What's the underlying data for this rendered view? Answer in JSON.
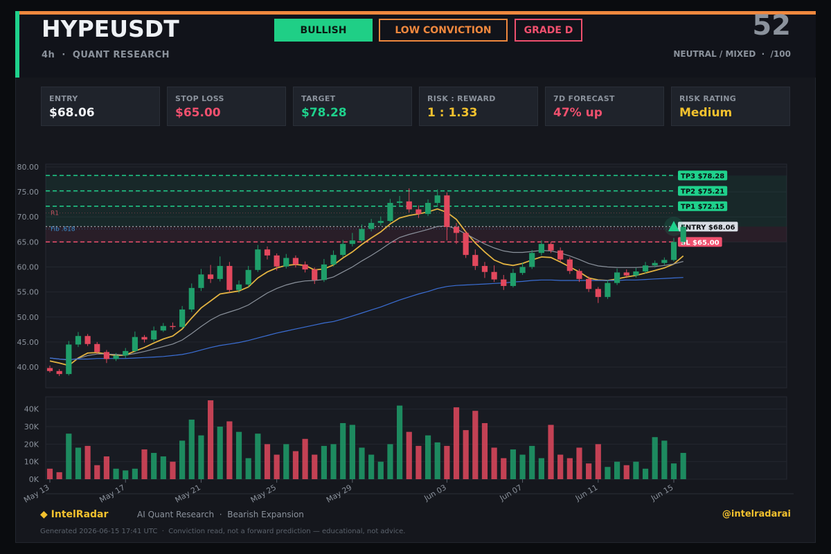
{
  "header": {
    "symbol": "HYPEUSDT",
    "subtitle": "4h  ·  QUANT RESEARCH",
    "badges": [
      "BULLISH",
      "LOW CONVICTION",
      "GRADE D"
    ],
    "score": 52,
    "score_label": "NEUTRAL / MIXED  ·  /100"
  },
  "cards": [
    {
      "label": "ENTRY",
      "value": "$68.06"
    },
    {
      "label": "STOP LOSS",
      "value": "$65.00"
    },
    {
      "label": "TARGET",
      "value": "$78.28"
    },
    {
      "label": "RISK : REWARD",
      "value": "1 : 1.33"
    },
    {
      "label": "7D FORECAST",
      "value": "47% up"
    },
    {
      "label": "RISK RATING",
      "value": "Medium"
    }
  ],
  "chart_data": {
    "type": "candlestick",
    "categories": [
      "May 13",
      null,
      null,
      null,
      null,
      null,
      null,
      null,
      "May 17",
      null,
      null,
      null,
      null,
      null,
      null,
      null,
      "May 21",
      null,
      null,
      null,
      null,
      null,
      null,
      null,
      "May 25",
      null,
      null,
      null,
      null,
      null,
      null,
      null,
      "May 29",
      null,
      null,
      null,
      null,
      null,
      null,
      null,
      null,
      null,
      "Jun 03",
      null,
      null,
      null,
      null,
      null,
      null,
      null,
      "Jun 07",
      null,
      null,
      null,
      null,
      null,
      null,
      null,
      "Jun 11",
      null,
      null,
      null,
      null,
      null,
      null,
      null,
      "Jun 15",
      null
    ],
    "open": [
      39.8,
      39.2,
      38.6,
      44.5,
      46.2,
      44.6,
      43.0,
      41.6,
      42.3,
      43.2,
      46.0,
      45.5,
      47.3,
      48.2,
      48.0,
      51.5,
      55.8,
      58.5,
      57.6,
      60.2,
      55.4,
      56.5,
      59.4,
      63.5,
      62.3,
      60.1,
      61.8,
      60.5,
      59.5,
      57.4,
      60.5,
      62.4,
      64.6,
      65.3,
      67.6,
      68.8,
      69.2,
      72.8,
      73.1,
      71.5,
      70.6,
      72.8,
      74.3,
      68.0,
      66.8,
      62.4,
      60.2,
      59.0,
      57.5,
      56.2,
      58.8,
      60.0,
      62.8,
      64.6,
      63.3,
      61.5,
      59.2,
      57.6,
      55.6,
      54.0,
      56.8,
      58.9,
      58.3,
      59.1,
      60.3,
      60.8,
      61.4,
      65.0
    ],
    "high": [
      40.3,
      39.6,
      45.2,
      47.0,
      46.6,
      45.0,
      43.4,
      42.8,
      43.8,
      47.1,
      46.4,
      48.1,
      48.8,
      48.9,
      52.2,
      56.7,
      59.6,
      60.4,
      62.1,
      61.0,
      57.3,
      60.2,
      64.4,
      64.1,
      62.7,
      62.6,
      62.3,
      61.1,
      59.9,
      61.6,
      63.3,
      65.4,
      66.8,
      68.5,
      69.6,
      70.1,
      73.6,
      74.2,
      75.7,
      72.3,
      73.5,
      75.5,
      74.9,
      68.8,
      67.2,
      63.5,
      61.0,
      60.3,
      58.4,
      59.6,
      60.9,
      63.4,
      65.3,
      65.0,
      63.9,
      61.9,
      59.6,
      58.1,
      56.0,
      57.4,
      59.7,
      59.5,
      59.8,
      61.0,
      61.3,
      61.9,
      65.8,
      68.4
    ],
    "low": [
      38.9,
      38.2,
      38.3,
      44.0,
      44.2,
      42.6,
      40.8,
      41.2,
      41.8,
      42.9,
      44.9,
      45.1,
      47.0,
      47.5,
      47.7,
      51.0,
      55.2,
      56.8,
      57.1,
      54.9,
      54.8,
      56.0,
      59.0,
      61.5,
      59.3,
      59.7,
      59.9,
      58.9,
      56.6,
      57.0,
      60.1,
      62.0,
      64.1,
      65.0,
      67.1,
      68.3,
      68.9,
      72.1,
      70.9,
      69.8,
      70.2,
      72.3,
      65.3,
      64.6,
      61.8,
      59.4,
      57.8,
      57.0,
      55.4,
      55.9,
      58.4,
      59.6,
      62.3,
      62.8,
      61.0,
      58.6,
      57.0,
      55.0,
      52.8,
      53.6,
      56.4,
      57.8,
      57.9,
      58.7,
      59.9,
      60.4,
      61.1,
      64.4
    ],
    "close": [
      39.2,
      38.6,
      44.5,
      46.2,
      44.6,
      43.0,
      41.6,
      42.3,
      43.2,
      46.0,
      45.5,
      47.3,
      48.2,
      48.0,
      51.5,
      55.8,
      58.5,
      57.6,
      60.2,
      55.4,
      56.5,
      59.4,
      63.5,
      62.3,
      60.1,
      61.8,
      60.5,
      59.5,
      57.4,
      60.5,
      62.4,
      64.6,
      65.3,
      67.6,
      68.8,
      69.2,
      72.8,
      73.1,
      71.5,
      70.6,
      72.8,
      74.3,
      68.0,
      66.8,
      62.4,
      60.2,
      59.0,
      57.5,
      56.2,
      58.8,
      60.0,
      62.8,
      64.6,
      63.3,
      61.5,
      59.2,
      57.6,
      55.6,
      54.0,
      56.8,
      58.9,
      58.3,
      59.1,
      60.3,
      60.8,
      61.4,
      65.0,
      68.0
    ],
    "up_color": "#1f9e6a",
    "down_color": "#e2485d",
    "series": [
      {
        "color": "#e3b341",
        "values": [
          41.2,
          40.8,
          40.3,
          41.8,
          42.8,
          42.9,
          42.6,
          42.3,
          42.4,
          43.2,
          43.9,
          44.8,
          45.6,
          46.2,
          47.6,
          49.8,
          51.8,
          53.2,
          54.6,
          54.9,
          55.2,
          56.0,
          57.8,
          59.0,
          59.8,
          60.3,
          60.5,
          60.3,
          59.4,
          59.6,
          60.4,
          61.8,
          63.0,
          64.5,
          65.8,
          67.0,
          68.6,
          69.8,
          70.3,
          70.6,
          71.0,
          71.6,
          70.9,
          69.5,
          67.0,
          64.8,
          63.0,
          61.4,
          60.6,
          60.3,
          60.7,
          61.4,
          62.0,
          61.9,
          61.0,
          60.0,
          59.0,
          57.8,
          57.4,
          57.3,
          57.6,
          58.0,
          58.3,
          58.8,
          59.3,
          59.8,
          60.6,
          62.2
        ]
      },
      {
        "color": "#8b929c",
        "values": [
          41.8,
          41.6,
          41.4,
          41.7,
          42.3,
          42.6,
          42.6,
          42.5,
          42.4,
          42.7,
          43.1,
          43.6,
          44.1,
          44.6,
          45.4,
          46.7,
          48.1,
          49.4,
          50.4,
          51.0,
          51.6,
          52.4,
          53.6,
          54.8,
          55.7,
          56.4,
          56.9,
          57.2,
          57.3,
          57.5,
          58.0,
          59.0,
          60.0,
          61.2,
          62.3,
          63.5,
          64.8,
          65.9,
          66.5,
          67.0,
          67.5,
          68.1,
          68.2,
          67.6,
          66.6,
          65.6,
          64.6,
          63.8,
          63.2,
          62.9,
          62.9,
          63.1,
          63.3,
          63.2,
          62.8,
          62.2,
          61.5,
          60.7,
          60.2,
          60.0,
          59.9,
          59.9,
          59.9,
          60.0,
          60.1,
          60.3,
          60.6,
          61.1
        ]
      },
      {
        "color": "#3b6fd6",
        "values": [
          41.8,
          41.6,
          41.5,
          41.6,
          41.6,
          41.7,
          41.7,
          41.7,
          41.7,
          41.8,
          41.9,
          42.0,
          42.1,
          42.3,
          42.5,
          42.9,
          43.4,
          43.9,
          44.3,
          44.6,
          44.9,
          45.3,
          45.8,
          46.3,
          46.8,
          47.2,
          47.6,
          48.0,
          48.4,
          48.8,
          49.1,
          49.6,
          50.2,
          50.8,
          51.4,
          52.0,
          52.7,
          53.4,
          54.0,
          54.6,
          55.1,
          55.7,
          56.1,
          56.3,
          56.4,
          56.5,
          56.6,
          56.7,
          56.8,
          57.0,
          57.1,
          57.3,
          57.4,
          57.4,
          57.3,
          57.3,
          57.3,
          57.3,
          57.3,
          57.3,
          57.3,
          57.4,
          57.4,
          57.5,
          57.6,
          57.7,
          57.8,
          57.9
        ]
      }
    ],
    "ylim": [
      35.85,
      80.55
    ],
    "yticks": [
      {
        "value": 40,
        "label": "40.00"
      },
      {
        "value": 45,
        "label": "45.00"
      },
      {
        "value": 50,
        "label": "50.00"
      },
      {
        "value": 55,
        "label": "55.00"
      },
      {
        "value": 60,
        "label": "60.00"
      },
      {
        "value": 65,
        "label": "65.00"
      },
      {
        "value": 70,
        "label": "70.00"
      },
      {
        "value": 75,
        "label": "75.00"
      },
      {
        "value": 80,
        "label": "80.00"
      }
    ],
    "levels": [
      {
        "label": "TP3 $78.28",
        "value": 78.28,
        "color": "#1fd18c"
      },
      {
        "label": "TP2 $75.21",
        "value": 75.21,
        "color": "#1fd18c"
      },
      {
        "label": "TP1 $72.15",
        "value": 72.15,
        "color": "#1fd18c"
      },
      {
        "label": "ENTRY $68.06",
        "value": 68.06,
        "color": "#d8dce3"
      },
      {
        "label": "SL $65.00",
        "value": 65.0,
        "color": "#f0506e"
      }
    ],
    "annotations": [
      {
        "label": "R1",
        "value": 70.8,
        "color": "#c0505e"
      },
      {
        "label": "Fib .618",
        "value": 67.6,
        "color": "#3a8fd0"
      }
    ],
    "volume": [
      6000,
      4000,
      26000,
      18000,
      19000,
      8000,
      13000,
      6000,
      5000,
      6000,
      17000,
      15000,
      13000,
      10000,
      22000,
      34000,
      25000,
      45000,
      30000,
      33000,
      27000,
      12000,
      26000,
      20000,
      14000,
      20000,
      16000,
      23000,
      14000,
      19000,
      20000,
      32000,
      31000,
      18000,
      14000,
      10000,
      20000,
      42000,
      27000,
      19000,
      25000,
      21000,
      19000,
      41000,
      28000,
      39000,
      32000,
      18000,
      12000,
      17000,
      14000,
      19000,
      12000,
      31000,
      14000,
      12000,
      18000,
      9000,
      20000,
      7000,
      10000,
      8000,
      10000,
      6000,
      24000,
      22000,
      9000,
      15000
    ],
    "volume_ylim": [
      0,
      47000
    ],
    "volume_yticks": [
      {
        "value": 0,
        "label": "0K"
      },
      {
        "value": 10000,
        "label": "10K"
      },
      {
        "value": 20000,
        "label": "20K"
      },
      {
        "value": 30000,
        "label": "30K"
      },
      {
        "value": 40000,
        "label": "40K"
      }
    ]
  },
  "footer": {
    "brand": "◆ IntelRadar",
    "tagline": "AI Quant Research  ·  Bearish Expansion",
    "handle": "@intelradarai",
    "note": "Generated 2026-06-15 17:41 UTC  ·  Conviction read, not a forward prediction — educational, not advice."
  }
}
